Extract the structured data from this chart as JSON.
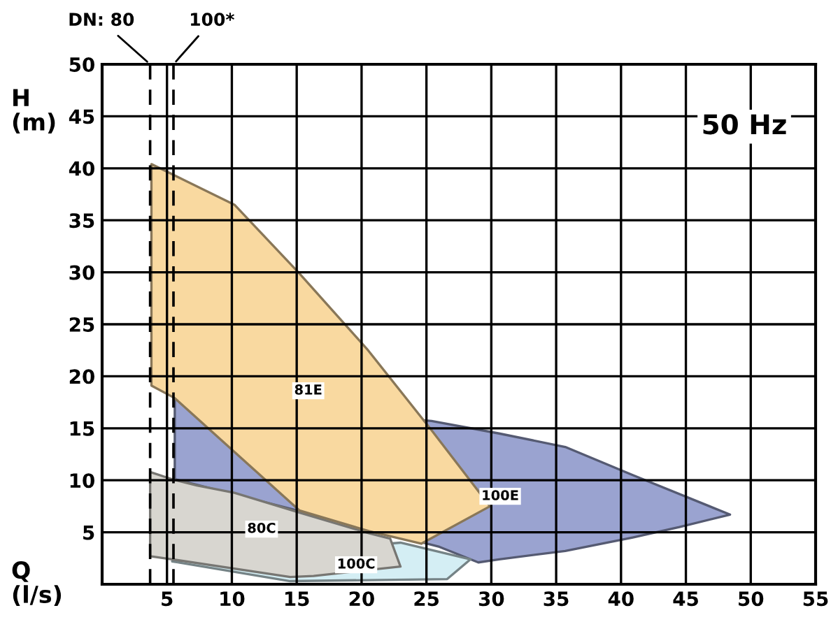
{
  "chart_data": {
    "type": "area",
    "xlabel": "Q\n(l/s)",
    "ylabel": "H\n(m)",
    "xlim": [
      0,
      55
    ],
    "ylim": [
      0,
      50
    ],
    "xticks": [
      5,
      10,
      15,
      20,
      25,
      30,
      35,
      40,
      45,
      50,
      55
    ],
    "yticks": [
      5,
      10,
      15,
      20,
      25,
      30,
      35,
      40,
      45,
      50
    ],
    "grid": true,
    "annotations": [
      "50 Hz",
      {
        "text": "DN: 80",
        "x": 3.7,
        "y": 50
      },
      {
        "text": "100*",
        "x": 5.5,
        "y": 50
      }
    ],
    "ref_lines": [
      {
        "axis": "x",
        "value": 3.7,
        "line_style": "dashed"
      },
      {
        "axis": "x",
        "value": 5.5,
        "line_style": "dashed"
      }
    ],
    "series": [
      {
        "name": "100E",
        "color": "#9aa3d0",
        "x": [
          5.6,
          25.4,
          30.6,
          35.7,
          40.9,
          48.4,
          44.5,
          40.9,
          35.7,
          30.6,
          29.0,
          26.0,
          5.6
        ],
        "values": [
          17.9,
          15.7,
          14.5,
          13.2,
          10.5,
          6.7,
          5.5,
          4.5,
          3.2,
          2.4,
          2.1,
          3.6,
          10.1
        ]
      },
      {
        "name": "100C",
        "color": "#d4eef4",
        "x": [
          5.4,
          23.0,
          28.4,
          26.6,
          14.5
        ],
        "values": [
          2.2,
          4.0,
          2.4,
          0.5,
          0.3
        ]
      },
      {
        "name": "80C",
        "color": "#d8d6d0",
        "x": [
          3.7,
          5.4,
          7.3,
          10.2,
          15.2,
          20.6,
          22.2,
          23.0,
          16.3,
          14.5,
          5.4,
          3.7
        ],
        "values": [
          10.8,
          10.1,
          9.5,
          8.8,
          6.9,
          4.9,
          4.4,
          1.7,
          0.8,
          0.7,
          2.4,
          2.7
        ]
      },
      {
        "name": "81E",
        "color": "#f9d9a0",
        "x": [
          3.8,
          10.2,
          15.2,
          20.5,
          25.4,
          29.9,
          24.6,
          20.6,
          15.2,
          5.6,
          3.8
        ],
        "values": [
          40.4,
          36.5,
          29.9,
          22.5,
          14.8,
          7.5,
          3.9,
          5.1,
          7.1,
          17.9,
          19.1
        ]
      }
    ]
  }
}
